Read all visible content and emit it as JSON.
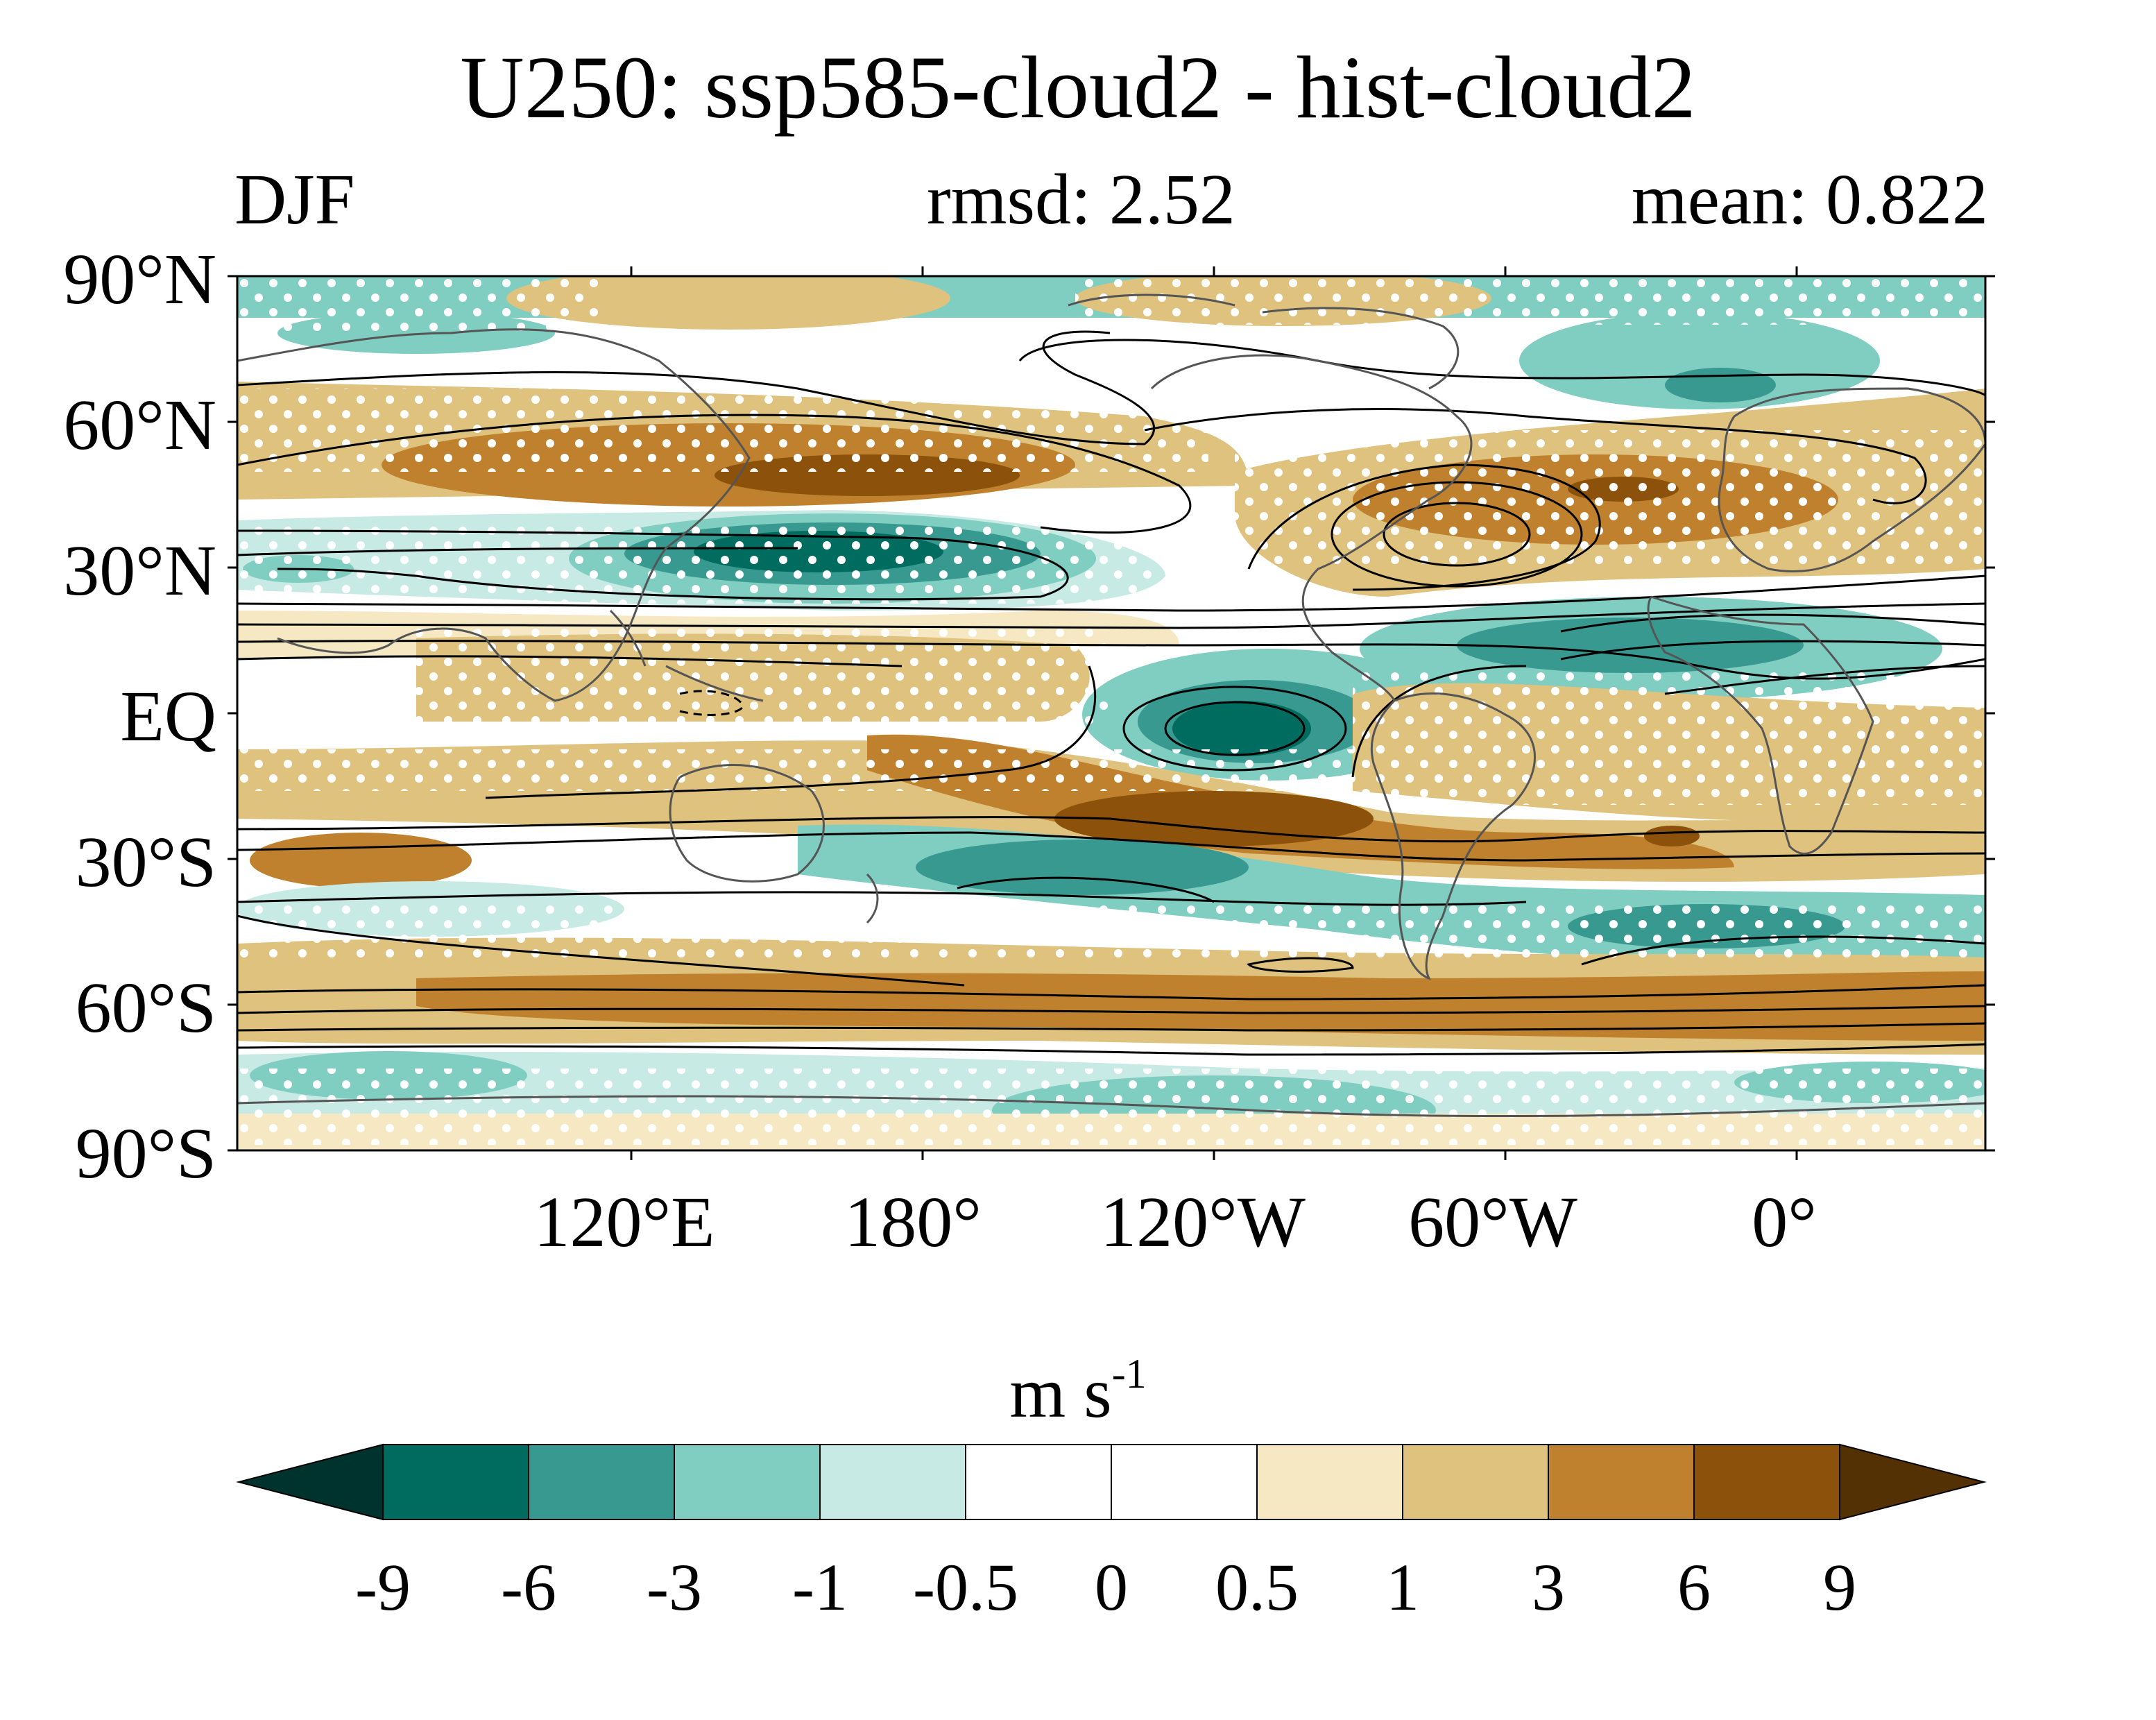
{
  "title": "U250: ssp585-cloud2 - hist-cloud2",
  "season": "DJF",
  "rmsd_label": "rmsd: 2.52",
  "mean_label": "mean: 0.822",
  "lat_labels": [
    "90°N",
    "60°N",
    "30°N",
    "EQ",
    "30°S",
    "60°S",
    "90°S"
  ],
  "lon_labels": [
    "120°E",
    "180°",
    "120°W",
    "60°W",
    "0°"
  ],
  "colorbar": {
    "unit_base": "m s",
    "unit_exp": "-1",
    "tick_labels": [
      "-9",
      "-6",
      "-3",
      "-1",
      "-0.5",
      "0",
      "0.5",
      "1",
      "3",
      "6",
      "9"
    ],
    "colors": [
      "#00332e",
      "#006b5f",
      "#379990",
      "#80cdc1",
      "#c7eae5",
      "#ffffff",
      "#ffffff",
      "#f6e8c3",
      "#dfc27d",
      "#bf812d",
      "#8c510a",
      "#543005"
    ]
  },
  "map": {
    "fill_colors": {
      "teal_dark": "#006b5f",
      "teal_mid": "#379990",
      "teal_light": "#80cdc1",
      "teal_pale": "#c7eae5",
      "tan_pale": "#f6e8c3",
      "tan": "#dfc27d",
      "brown": "#bf812d",
      "brown_dark": "#8c510a"
    },
    "coastline_color": "#555555",
    "contour_color": "#000000",
    "stipple_color": "#ffffff"
  }
}
